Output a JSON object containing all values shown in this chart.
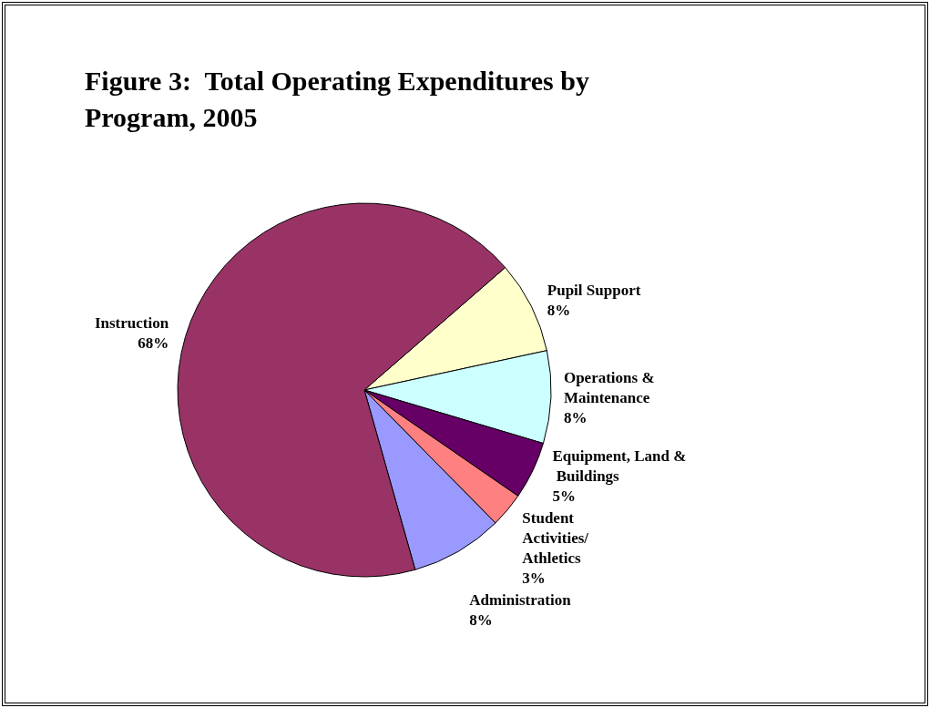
{
  "chart_data": {
    "type": "pie",
    "title": "Figure 3:  Total Operating Expenditures by Program, 2005",
    "categories": [
      "Pupil Support",
      "Operations & Maintenance",
      "Equipment, Land & Buildings",
      "Student Activities/Athletics",
      "Administration",
      "Instruction"
    ],
    "values": [
      8,
      8,
      5,
      3,
      8,
      68
    ],
    "value_labels": [
      "8%",
      "8%",
      "5%",
      "3%",
      "8%",
      "68%"
    ],
    "colors": [
      "#ffffcc",
      "#ccffff",
      "#660066",
      "#ff8080",
      "#9999ff",
      "#993366"
    ],
    "legend": false
  }
}
